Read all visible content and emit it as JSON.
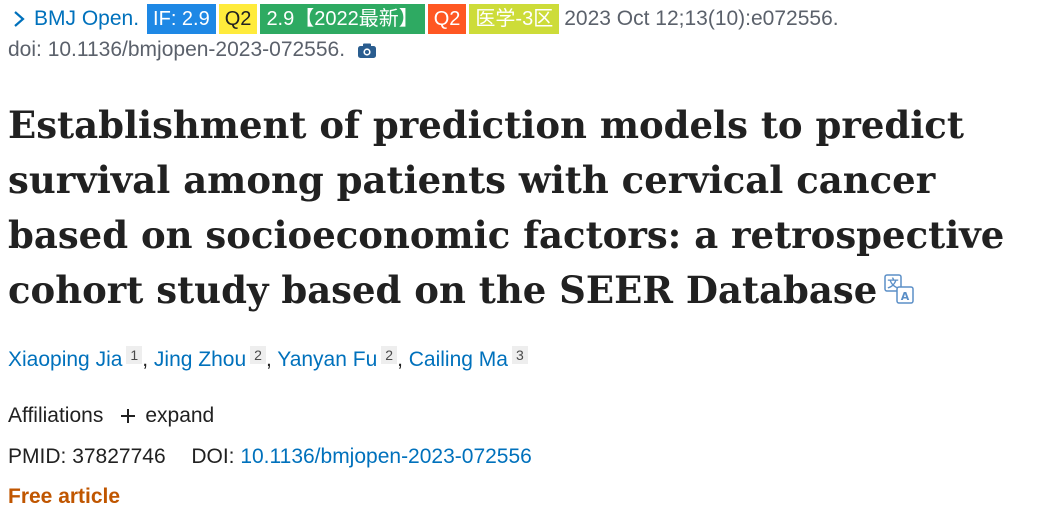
{
  "citation": {
    "chevron_icon": "chevron-right-icon",
    "journal": "BMJ Open.",
    "badges": {
      "impact_factor": "IF: 2.9",
      "quartile": "Q2",
      "latest": "2.9【2022最新】",
      "quartile2": "Q2",
      "zone": "医学-3区"
    },
    "date_volume": "2023 Oct 12;13(10):e072556.",
    "doi_text": "doi: 10.1136/bmjopen-2023-072556.",
    "camera_icon": "camera-icon"
  },
  "article": {
    "title": "Establishment of prediction models to predict survival among patients with cervical cancer based on socioeconomic factors: a retrospective cohort study based on the SEER Database",
    "translate_icon": "translate-icon"
  },
  "authors": [
    {
      "name": "Xiaoping Jia",
      "affiliation": "1"
    },
    {
      "name": "Jing Zhou",
      "affiliation": "2"
    },
    {
      "name": "Yanyan Fu",
      "affiliation": "2"
    },
    {
      "name": "Cailing Ma",
      "affiliation": "3"
    }
  ],
  "author_separator": ",",
  "affiliations": {
    "label": "Affiliations",
    "expand_label": "expand"
  },
  "identifiers": {
    "pmid_label": "PMID:",
    "pmid": "37827746",
    "doi_label": "DOI:",
    "doi": "10.1136/bmjopen-2023-072556"
  },
  "free_article": "Free article",
  "colors": {
    "link": "#0071bc",
    "free_article": "#c05600",
    "badge_if": "#1e88e5",
    "badge_q2": "#ffeb3b",
    "badge_latest": "#2eaa62",
    "badge_q2_alt": "#ff5722",
    "badge_zone": "#cddc39"
  }
}
